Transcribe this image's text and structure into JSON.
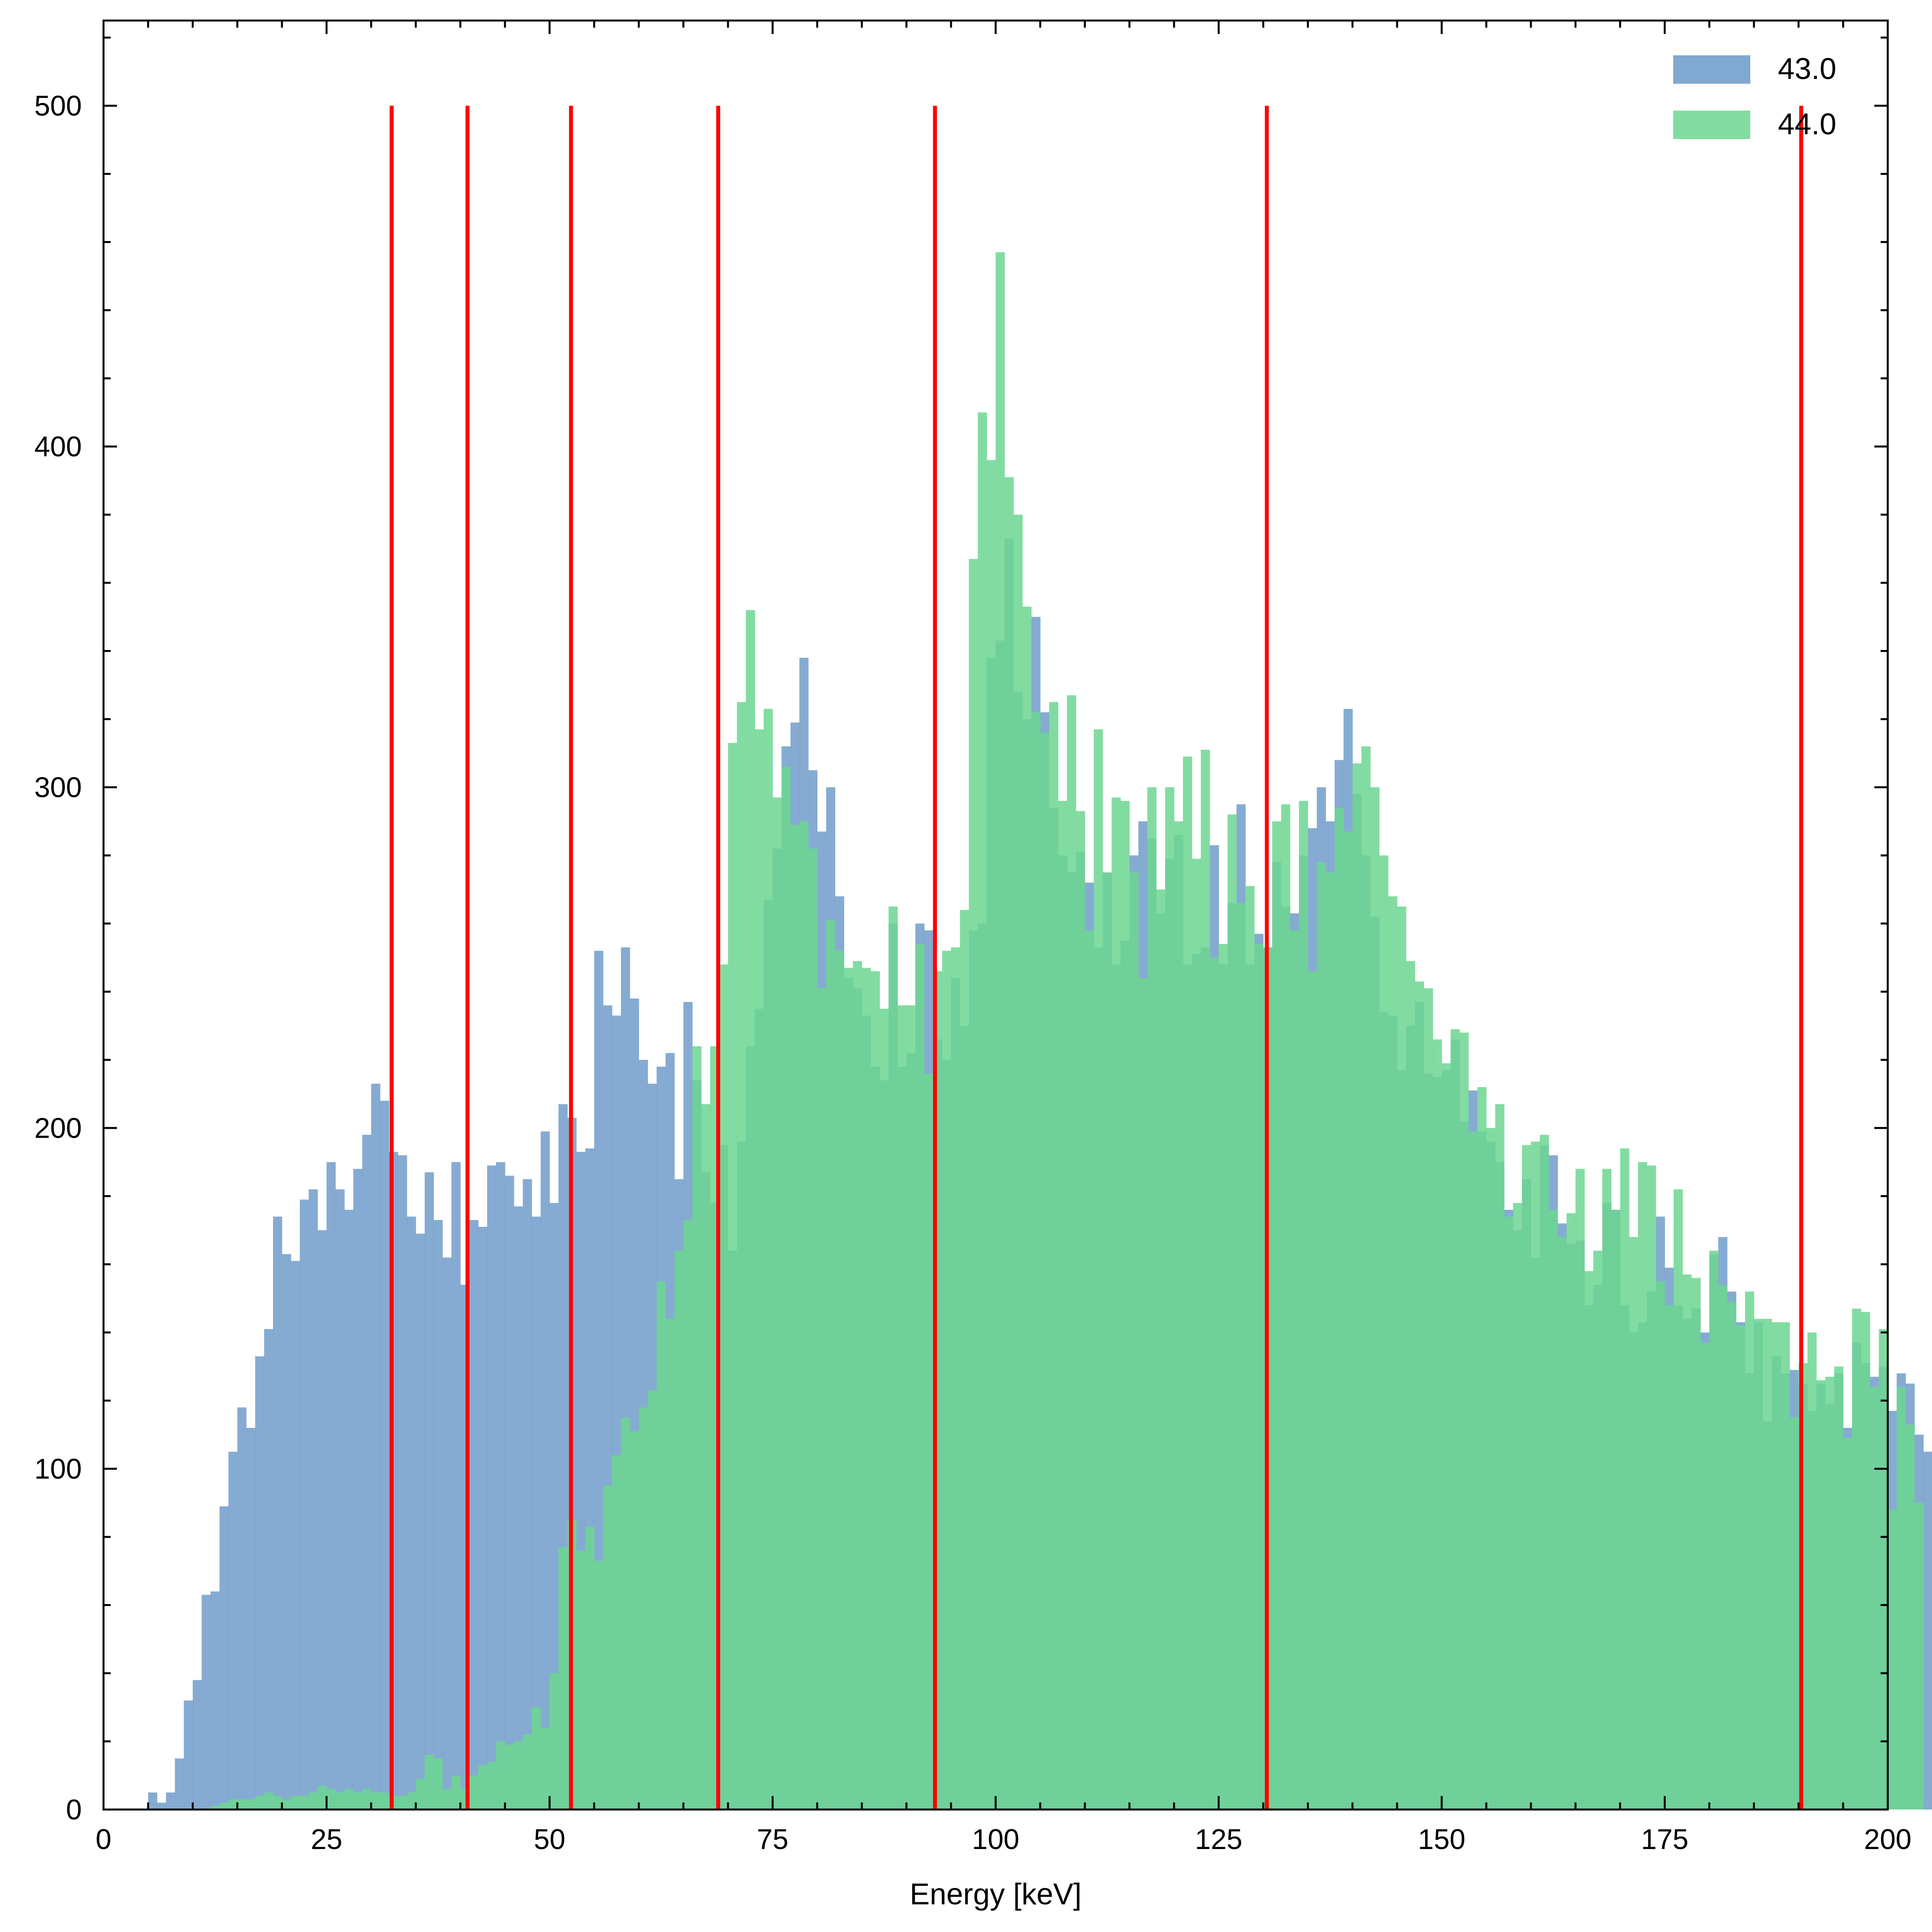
{
  "chart_data": {
    "type": "bar",
    "subtype": "overlaid-histogram",
    "title": "",
    "xlabel": "Energy [keV]",
    "ylabel": "",
    "xlim": [
      0,
      200
    ],
    "ylim": [
      0,
      525
    ],
    "x_ticks": [
      0,
      25,
      50,
      75,
      100,
      125,
      150,
      175,
      200
    ],
    "y_ticks": [
      0,
      100,
      200,
      300,
      400,
      500
    ],
    "grid": false,
    "legend_position": "top-right",
    "bin_start": 5,
    "bin_width": 1,
    "series": [
      {
        "name": "43.0",
        "color": "#6b99c8",
        "values": [
          5,
          2,
          5,
          15,
          32,
          38,
          63,
          64,
          89,
          105,
          118,
          112,
          133,
          141,
          174,
          163,
          161,
          179,
          182,
          170,
          190,
          182,
          176,
          188,
          198,
          213,
          208,
          193,
          192,
          174,
          169,
          187,
          173,
          162,
          190,
          154,
          173,
          171,
          189,
          190,
          186,
          177,
          185,
          174,
          199,
          178,
          207,
          203,
          193,
          194,
          252,
          236,
          233,
          253,
          238,
          220,
          213,
          218,
          222,
          185,
          237,
          214,
          187,
          178,
          195,
          164,
          196,
          224,
          235,
          267,
          282,
          312,
          319,
          338,
          305,
          287,
          300,
          268,
          244,
          241,
          233,
          218,
          214,
          260,
          218,
          222,
          260,
          258,
          226,
          220,
          244,
          230,
          258,
          260,
          338,
          343,
          373,
          328,
          320,
          350,
          322,
          294,
          280,
          275,
          281,
          272,
          253,
          275,
          248,
          255,
          280,
          290,
          285,
          263,
          279,
          286,
          248,
          251,
          253,
          283,
          248,
          266,
          295,
          248,
          257,
          253,
          278,
          265,
          263,
          280,
          288,
          300,
          290,
          308,
          323,
          298,
          280,
          262,
          234,
          233,
          217,
          230,
          237,
          216,
          215,
          217,
          226,
          202,
          211,
          199,
          196,
          190,
          176,
          170,
          185,
          162,
          195,
          192,
          172,
          166,
          167,
          148,
          154,
          178,
          176,
          148,
          140,
          143,
          152,
          174,
          159,
          148,
          144,
          147,
          140,
          163,
          168,
          152,
          143,
          128,
          143,
          114,
          133,
          128,
          129,
          125,
          117,
          125,
          119,
          128,
          112,
          137,
          131,
          127,
          130,
          117,
          128,
          125,
          110,
          105
        ]
      },
      {
        "name": "44.0",
        "color": "#6cd690",
        "values": [
          0,
          0,
          0,
          0,
          0,
          0,
          0,
          1,
          2,
          3,
          3,
          3,
          4,
          5,
          4,
          3,
          4,
          4,
          5,
          7,
          6,
          5,
          6,
          5,
          6,
          5,
          5,
          4,
          4,
          5,
          9,
          16,
          15,
          6,
          10,
          6,
          10,
          13,
          14,
          20,
          19,
          20,
          22,
          30,
          24,
          40,
          77,
          85,
          76,
          83,
          73,
          95,
          104,
          115,
          111,
          118,
          123,
          155,
          144,
          164,
          173,
          224,
          207,
          224,
          248,
          313,
          325,
          352,
          317,
          323,
          297,
          306,
          289,
          290,
          282,
          241,
          261,
          252,
          247,
          249,
          247,
          246,
          235,
          265,
          236,
          236,
          254,
          216,
          246,
          252,
          253,
          264,
          367,
          410,
          396,
          457,
          391,
          380,
          353,
          322,
          316,
          325,
          296,
          327,
          293,
          258,
          317,
          275,
          297,
          296,
          275,
          244,
          300,
          270,
          300,
          290,
          309,
          279,
          311,
          250,
          254,
          292,
          266,
          271,
          254,
          253,
          290,
          295,
          258,
          296,
          246,
          278,
          275,
          294,
          287,
          307,
          312,
          300,
          280,
          268,
          265,
          249,
          243,
          241,
          226,
          219,
          229,
          228,
          199,
          212,
          200,
          207,
          174,
          178,
          195,
          196,
          198,
          176,
          168,
          175,
          188,
          158,
          164,
          188,
          176,
          194,
          168,
          190,
          189,
          155,
          148,
          182,
          157,
          156,
          137,
          164,
          154,
          149,
          142,
          152,
          144,
          144,
          143,
          143,
          115,
          131,
          140,
          126,
          127,
          130,
          109,
          147,
          146,
          124,
          141,
          88,
          124,
          113,
          90
        ]
      }
    ],
    "vertical_lines": {
      "color": "#ff0000",
      "x": [
        32.3,
        40.8,
        52.4,
        68.9,
        93.2,
        130.4,
        190.3
      ],
      "y_top": 500
    }
  }
}
